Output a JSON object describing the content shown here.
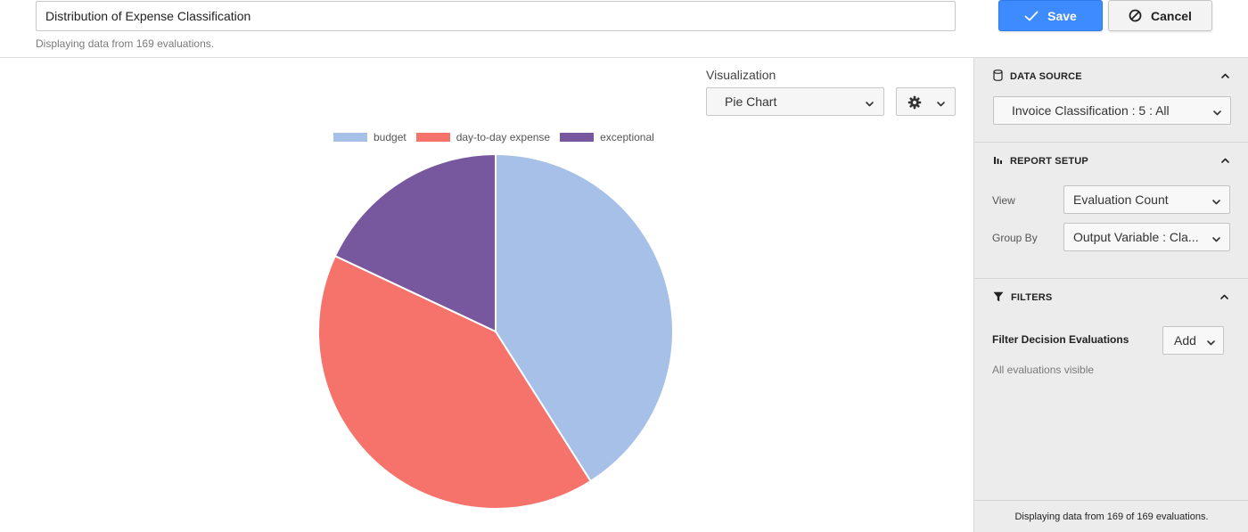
{
  "header": {
    "title_value": "Distribution of Expense Classification",
    "subtitle": "Displaying data from 169 evaluations.",
    "save_label": "Save",
    "cancel_label": "Cancel",
    "save_icon": "check-icon",
    "cancel_icon": "ban-icon"
  },
  "visualization": {
    "label": "Visualization",
    "selected": "Pie Chart",
    "settings_icon": "gear-icon"
  },
  "chart_data": {
    "type": "pie",
    "categories": [
      "budget",
      "day-to-day expense",
      "exceptional"
    ],
    "values": [
      41,
      41,
      18
    ],
    "colors": [
      "#a6c0e8",
      "#f5736b",
      "#77579e"
    ],
    "legend": "top",
    "title": ""
  },
  "sidebar": {
    "data_source": {
      "heading": "DATA SOURCE",
      "selected": "Invoice Classification : 5 : All"
    },
    "report_setup": {
      "heading": "REPORT SETUP",
      "view_label": "View",
      "view_selected": "Evaluation Count",
      "group_label": "Group By",
      "group_selected": "Output Variable : Cla..."
    },
    "filters": {
      "heading": "FILTERS",
      "filter_label": "Filter Decision Evaluations",
      "add_label": "Add",
      "note": "All evaluations visible"
    },
    "footer": "Displaying data from 169 of 169 evaluations."
  }
}
